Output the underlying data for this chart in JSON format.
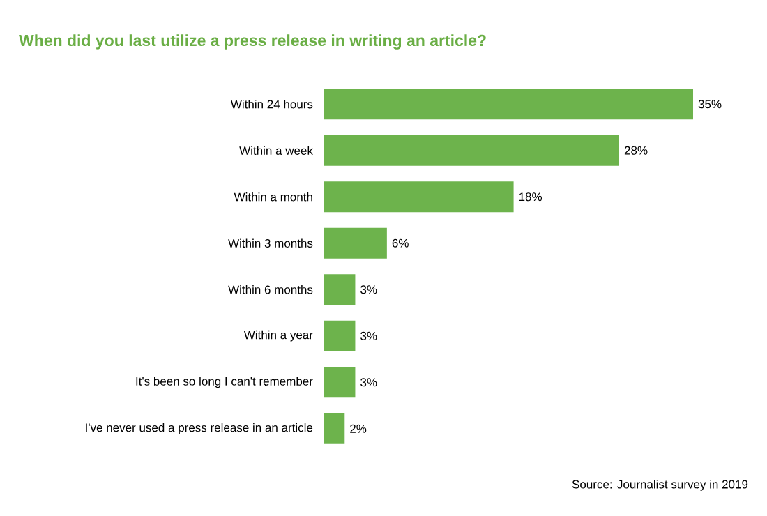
{
  "chart_data": {
    "type": "bar",
    "orientation": "horizontal",
    "title": "When did you last utilize a press release in writing an article?",
    "categories": [
      "Within 24 hours",
      "Within a week",
      "Within a month",
      "Within 3 months",
      "Within 6 months",
      "Within a year",
      "It's been so long I can't remember",
      "I've never used a press release in an article"
    ],
    "values": [
      35,
      28,
      18,
      6,
      3,
      3,
      3,
      2
    ],
    "value_labels": [
      "35%",
      "28%",
      "18%",
      "6%",
      "3%",
      "3%",
      "3%",
      "2%"
    ],
    "color": "#6db34c",
    "annotations": [
      "Source: Journalist survey in 2019"
    ]
  }
}
